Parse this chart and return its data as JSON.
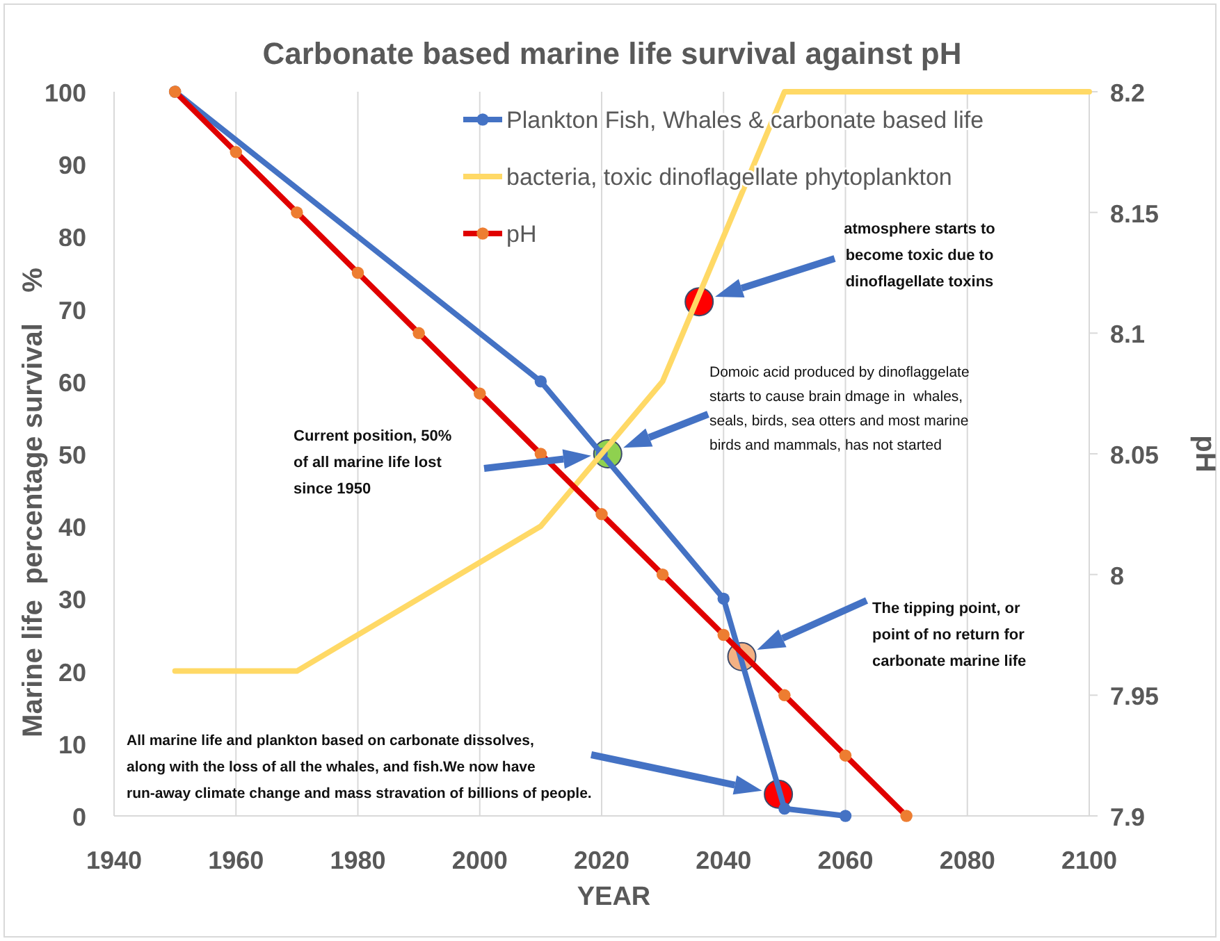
{
  "chart_data": {
    "type": "line",
    "title": "Carbonate based marine life survival against pH",
    "xlabel": "YEAR",
    "ylabel": "Marine life  percentage survival    %",
    "y2label": "pH",
    "xlim": [
      1940,
      2100
    ],
    "xticks": [
      1940,
      1960,
      1980,
      2000,
      2020,
      2040,
      2060,
      2080,
      2100
    ],
    "ylim": [
      0,
      100
    ],
    "yticks": [
      0,
      10,
      20,
      30,
      40,
      50,
      60,
      70,
      80,
      90,
      100
    ],
    "y2lim": [
      7.9,
      8.2
    ],
    "y2ticks": [
      7.9,
      7.95,
      8,
      8.05,
      8.1,
      8.15,
      8.2
    ],
    "grid": "x",
    "legend": "top",
    "marker": "circle",
    "line_style": "solid",
    "series": [
      {
        "type": "scatter",
        "colors": [
          "#ff0000",
          "#8fd14f",
          "#f4b183",
          "#ff0000"
        ],
        "x": [
          2036,
          2021,
          2043,
          2049
        ],
        "values": [
          71,
          50,
          22,
          3
        ]
      },
      {
        "name": "Plankton Fish, Whales & carbonate based life",
        "color": "#4472c4",
        "x": [
          1950,
          2010,
          2020,
          2040,
          2050,
          2060
        ],
        "values": [
          100,
          60,
          50,
          30,
          1,
          0
        ]
      },
      {
        "name": "bacteria, toxic dinoflagellate phytoplankton",
        "color": "#ffd966",
        "marker": "none",
        "x": [
          1950,
          1970,
          2010,
          2030,
          2050,
          2100
        ],
        "values": [
          20,
          20,
          40,
          60,
          100,
          100
        ]
      },
      {
        "name": "pH",
        "color": "#e00000",
        "axis": "y2",
        "colors": [
          "#ed7d31",
          "#ed7d31",
          "#ed7d31",
          "#ed7d31",
          "#ed7d31",
          "#ed7d31",
          "#ed7d31",
          "#ed7d31",
          "#ed7d31",
          "#ed7d31",
          "#ed7d31",
          "#ed7d31",
          "#ed7d31"
        ],
        "x": [
          1950,
          1960,
          1970,
          1980,
          1990,
          2000,
          2010,
          2020,
          2030,
          2040,
          2050,
          2060,
          2070
        ],
        "values": [
          8.2,
          8.175,
          8.15,
          8.125,
          8.1,
          8.075,
          8.05,
          8.025,
          8,
          7.975,
          7.95,
          7.925,
          7.9
        ]
      }
    ],
    "annotations": [
      "atmosphere starts to\nbecome toxic due to\ndinoflagellate toxins",
      "Domoic acid produced by dinoflaggelate\nstarts to cause brain dmage in  whales,\nseals, birds, sea otters and most marine\nbirds and mammals, has not started",
      "Current position, 50%\nof all marine life lost\nsince 1950",
      "The tipping point, or\npoint of no return for\ncarbonate marine life",
      "All marine life and plankton based on carbonate dissolves,\nalong with the loss of all the whales, and fish.We now have\nrun-away climate change and mass stravation of billions of people."
    ]
  }
}
